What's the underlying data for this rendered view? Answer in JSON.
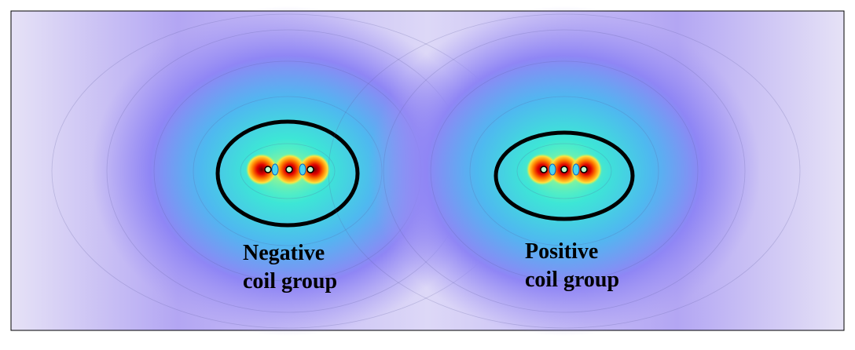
{
  "labels": [
    {
      "lines": [
        "Negative",
        "coil group"
      ]
    },
    {
      "lines": [
        "Positive",
        "coil group"
      ]
    }
  ]
}
